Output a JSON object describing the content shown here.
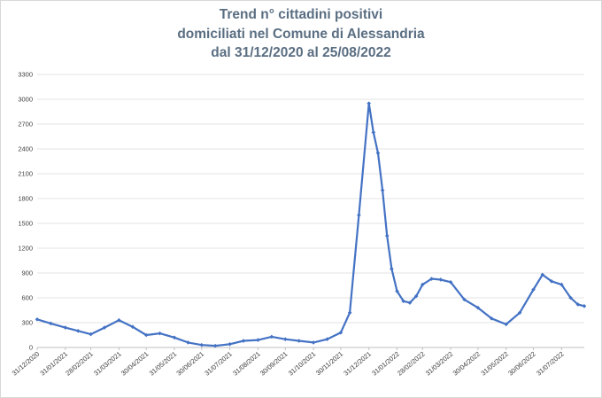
{
  "chart_data": {
    "type": "line",
    "title_lines": [
      "Trend n° cittadini positivi",
      "domiciliati nel Comune di Alessandria",
      "dal 31/12/2020 al 25/08/2022"
    ],
    "xlabel": "",
    "ylabel": "",
    "ylim": [
      0,
      3300
    ],
    "y_ticks": [
      0,
      300,
      600,
      900,
      1200,
      1500,
      1800,
      2100,
      2400,
      2700,
      3000,
      3300
    ],
    "x_tick_labels": [
      "31/12/2020",
      "31/01/2021",
      "28/02/2021",
      "31/03/2021",
      "30/04/2021",
      "31/05/2021",
      "30/06/2021",
      "31/07/2021",
      "31/08/2021",
      "30/09/2021",
      "31/10/2021",
      "30/11/2021",
      "31/12/2021",
      "31/01/2022",
      "28/02/2022",
      "31/03/2022",
      "30/04/2022",
      "31/05/2022",
      "30/06/2022",
      "31/07/2022"
    ],
    "grid": "horizontal",
    "legend": "none",
    "series_color": "#4472c4",
    "series": [
      {
        "x": [
          "31/12/2020",
          "15/01/2021",
          "31/01/2021",
          "14/02/2021",
          "28/02/2021",
          "15/03/2021",
          "31/03/2021",
          "15/04/2021",
          "30/04/2021",
          "15/05/2021",
          "31/05/2021",
          "15/06/2021",
          "30/06/2021",
          "15/07/2021",
          "31/07/2021",
          "15/08/2021",
          "31/08/2021",
          "15/09/2021",
          "30/09/2021",
          "15/10/2021",
          "31/10/2021",
          "15/11/2021",
          "30/11/2021",
          "10/12/2021",
          "20/12/2021",
          "31/12/2021",
          "05/01/2022",
          "10/01/2022",
          "15/01/2022",
          "20/01/2022",
          "25/01/2022",
          "31/01/2022",
          "07/02/2022",
          "14/02/2022",
          "21/02/2022",
          "28/02/2022",
          "10/03/2022",
          "20/03/2022",
          "31/03/2022",
          "15/04/2022",
          "30/04/2022",
          "15/05/2022",
          "31/05/2022",
          "15/06/2022",
          "30/06/2022",
          "10/07/2022",
          "20/07/2022",
          "31/07/2022",
          "10/08/2022",
          "18/08/2022",
          "25/08/2022"
        ],
        "values": [
          340,
          290,
          240,
          200,
          160,
          240,
          330,
          250,
          150,
          170,
          120,
          60,
          30,
          20,
          40,
          80,
          90,
          130,
          100,
          80,
          60,
          100,
          180,
          420,
          1600,
          2950,
          2600,
          2350,
          1900,
          1350,
          950,
          680,
          560,
          540,
          620,
          760,
          830,
          820,
          790,
          580,
          480,
          350,
          280,
          420,
          700,
          880,
          800,
          760,
          600,
          520,
          500
        ]
      }
    ]
  }
}
